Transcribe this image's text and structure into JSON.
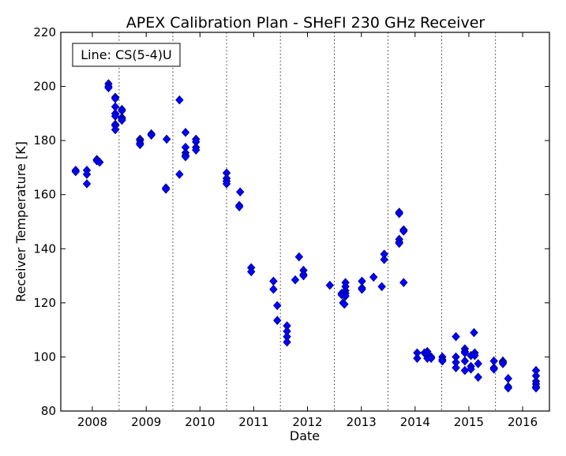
{
  "chart_data": {
    "type": "scatter",
    "title": "APEX Calibration Plan - SHeFI 230 GHz Receiver",
    "xlabel": "Date",
    "ylabel": "Receiver Temperature [K]",
    "xlim": [
      "2007-06-01",
      "2016-07-01"
    ],
    "ylim": [
      80,
      220
    ],
    "x_ticks": [
      "2008",
      "2009",
      "2010",
      "2011",
      "2012",
      "2013",
      "2014",
      "2015",
      "2016"
    ],
    "y_ticks": [
      80,
      100,
      120,
      140,
      160,
      180,
      200,
      220
    ],
    "vertical_gridlines": [
      "2008-07-01",
      "2009-07-01",
      "2010-07-01",
      "2011-07-01",
      "2012-07-01",
      "2013-07-01",
      "2014-07-01",
      "2015-07-01"
    ],
    "gridline_style": "dotted",
    "legend": {
      "text": "Line: CS(5-4)U",
      "placement": "top-left"
    },
    "marker": {
      "shape": "diamond",
      "color": "#0000ff",
      "edge_color": "#000080"
    },
    "series": [
      {
        "points": [
          [
            "2007-09-10",
            169
          ],
          [
            "2007-09-10",
            168.5
          ],
          [
            "2007-11-25",
            169
          ],
          [
            "2007-11-25",
            167.5
          ],
          [
            "2007-11-25",
            164
          ],
          [
            "2008-02-01",
            173
          ],
          [
            "2008-02-01",
            172.5
          ],
          [
            "2008-02-20",
            172
          ],
          [
            "2008-04-20",
            201
          ],
          [
            "2008-04-20",
            200
          ],
          [
            "2008-04-20",
            199.5
          ],
          [
            "2008-06-05",
            196
          ],
          [
            "2008-06-05",
            195.5
          ],
          [
            "2008-06-05",
            192.5
          ],
          [
            "2008-06-05",
            190
          ],
          [
            "2008-06-05",
            189
          ],
          [
            "2008-06-05",
            186
          ],
          [
            "2008-06-05",
            185.5
          ],
          [
            "2008-06-05",
            184
          ],
          [
            "2008-07-20",
            191.5
          ],
          [
            "2008-07-20",
            191
          ],
          [
            "2008-07-20",
            188.5
          ],
          [
            "2008-07-20",
            188
          ],
          [
            "2008-07-20",
            187.5
          ],
          [
            "2008-11-20",
            180.5
          ],
          [
            "2008-11-20",
            180
          ],
          [
            "2008-11-20",
            179
          ],
          [
            "2008-11-20",
            178.5
          ],
          [
            "2009-02-05",
            182.5
          ],
          [
            "2009-02-05",
            182
          ],
          [
            "2009-05-15",
            162.5
          ],
          [
            "2009-05-15",
            162
          ],
          [
            "2009-05-20",
            180.5
          ],
          [
            "2009-08-15",
            195
          ],
          [
            "2009-08-15",
            167.5
          ],
          [
            "2009-09-25",
            183
          ],
          [
            "2009-09-25",
            177.5
          ],
          [
            "2009-09-25",
            175.5
          ],
          [
            "2009-09-25",
            174.5
          ],
          [
            "2009-09-25",
            174
          ],
          [
            "2009-12-05",
            180.5
          ],
          [
            "2009-12-05",
            179.5
          ],
          [
            "2009-12-05",
            177.5
          ],
          [
            "2009-12-05",
            176.5
          ],
          [
            "2010-07-01",
            168
          ],
          [
            "2010-07-01",
            166
          ],
          [
            "2010-07-01",
            165
          ],
          [
            "2010-07-01",
            164
          ],
          [
            "2010-10-01",
            161
          ],
          [
            "2010-09-25",
            156
          ],
          [
            "2010-09-25",
            155.5
          ],
          [
            "2010-12-15",
            133
          ],
          [
            "2010-12-15",
            131.5
          ],
          [
            "2011-05-15",
            128
          ],
          [
            "2011-05-15",
            125
          ],
          [
            "2011-06-10",
            119
          ],
          [
            "2011-06-10",
            113.5
          ],
          [
            "2011-08-15",
            111.5
          ],
          [
            "2011-08-15",
            109.5
          ],
          [
            "2011-08-15",
            107.5
          ],
          [
            "2011-08-15",
            105.5
          ],
          [
            "2011-10-10",
            128.5
          ],
          [
            "2011-11-05",
            137
          ],
          [
            "2011-12-05",
            132
          ],
          [
            "2011-12-05",
            130.5
          ],
          [
            "2011-12-05",
            130
          ],
          [
            "2012-06-01",
            126.5
          ],
          [
            "2012-08-20",
            123.5
          ],
          [
            "2012-08-20",
            123
          ],
          [
            "2012-08-30",
            120
          ],
          [
            "2012-09-08",
            119.5
          ],
          [
            "2012-09-15",
            127.5
          ],
          [
            "2012-09-15",
            126
          ],
          [
            "2012-09-15",
            124.5
          ],
          [
            "2012-09-15",
            123.5
          ],
          [
            "2012-09-15",
            122.5
          ],
          [
            "2013-01-05",
            128
          ],
          [
            "2013-01-05",
            125.5
          ],
          [
            "2013-01-05",
            125
          ],
          [
            "2013-03-25",
            129.5
          ],
          [
            "2013-05-20",
            126
          ],
          [
            "2013-06-05",
            138
          ],
          [
            "2013-06-05",
            136
          ],
          [
            "2013-09-15",
            153.5
          ],
          [
            "2013-09-15",
            153
          ],
          [
            "2013-09-15",
            143.5
          ],
          [
            "2013-09-15",
            142.5
          ],
          [
            "2013-09-15",
            142
          ],
          [
            "2013-10-15",
            147
          ],
          [
            "2013-10-15",
            146.5
          ],
          [
            "2013-10-15",
            127.5
          ],
          [
            "2014-01-15",
            101.5
          ],
          [
            "2014-01-15",
            99.5
          ],
          [
            "2014-03-05",
            101.5
          ],
          [
            "2014-03-25",
            102
          ],
          [
            "2014-03-25",
            101
          ],
          [
            "2014-03-25",
            99.5
          ],
          [
            "2014-04-20",
            100
          ],
          [
            "2014-04-20",
            99.5
          ],
          [
            "2014-07-05",
            100
          ],
          [
            "2014-07-05",
            99
          ],
          [
            "2014-07-05",
            98.5
          ],
          [
            "2014-10-05",
            107.5
          ],
          [
            "2014-10-05",
            100
          ],
          [
            "2014-10-05",
            98
          ],
          [
            "2014-10-05",
            96
          ],
          [
            "2014-12-05",
            103
          ],
          [
            "2014-12-05",
            102
          ],
          [
            "2014-12-05",
            101.5
          ],
          [
            "2014-12-05",
            98.5
          ],
          [
            "2014-12-05",
            95
          ],
          [
            "2015-01-15",
            100.5
          ],
          [
            "2015-01-15",
            96.5
          ],
          [
            "2015-01-15",
            95.5
          ],
          [
            "2015-02-05",
            109
          ],
          [
            "2015-02-10",
            101.5
          ],
          [
            "2015-02-10",
            100.5
          ],
          [
            "2015-03-05",
            97.5
          ],
          [
            "2015-03-05",
            92.5
          ],
          [
            "2015-06-20",
            98.5
          ],
          [
            "2015-06-20",
            96
          ],
          [
            "2015-06-20",
            95.5
          ],
          [
            "2015-08-20",
            98.5
          ],
          [
            "2015-08-20",
            98
          ],
          [
            "2015-08-20",
            97.5
          ],
          [
            "2015-09-25",
            92
          ],
          [
            "2015-09-25",
            89
          ],
          [
            "2015-09-25",
            88.5
          ],
          [
            "2016-04-01",
            95
          ],
          [
            "2016-04-01",
            93
          ],
          [
            "2016-04-01",
            91
          ],
          [
            "2016-04-01",
            90
          ],
          [
            "2016-04-01",
            89
          ],
          [
            "2016-04-01",
            88.5
          ]
        ]
      }
    ]
  }
}
